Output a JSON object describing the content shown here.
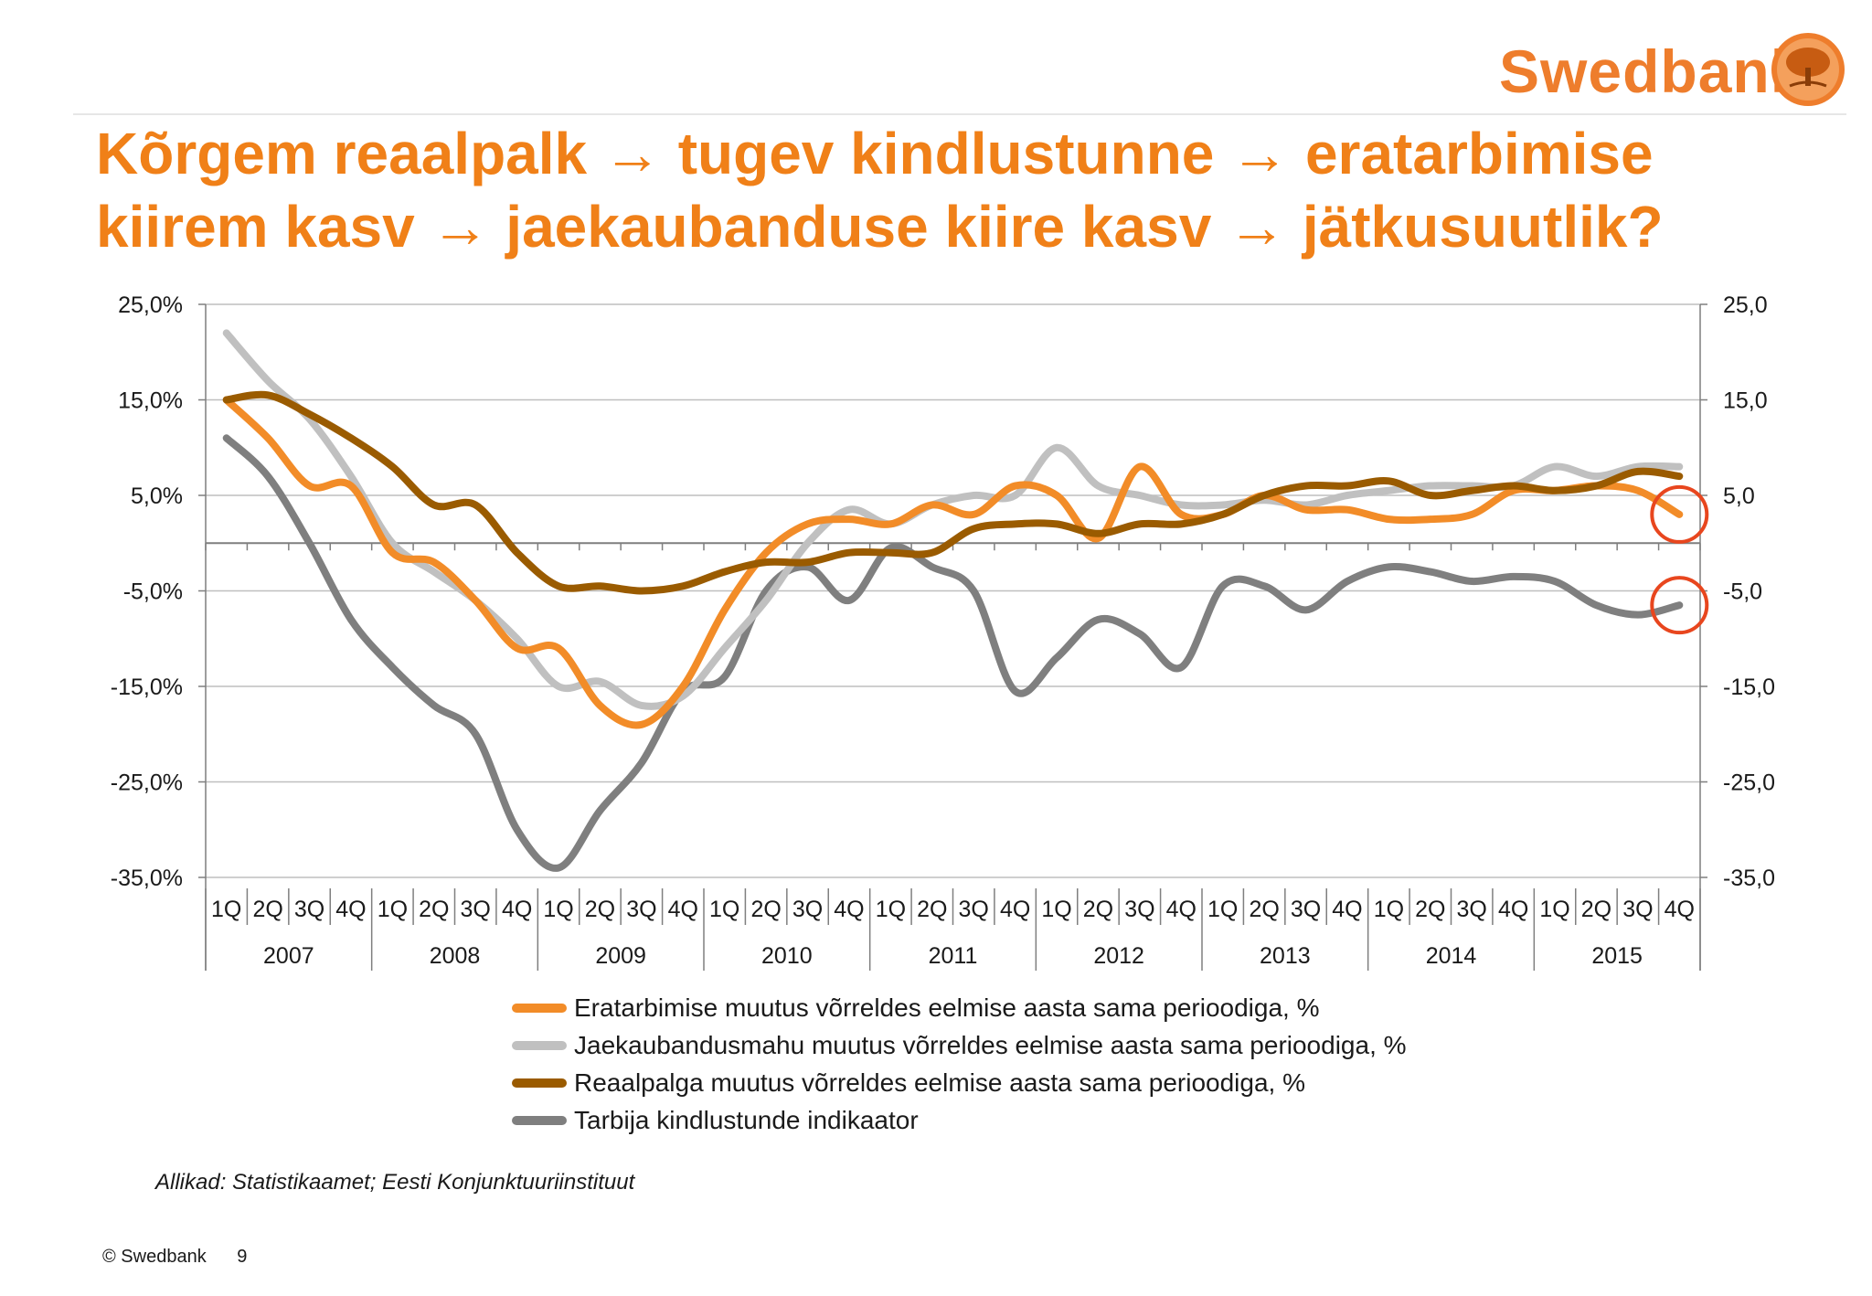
{
  "brand": {
    "name": "Swedbank",
    "logo_color": "#ee7d2c"
  },
  "slide": {
    "title_line1": "Kõrgem reaalpalk → tugev kindlustunne → eratarbimise",
    "title_line2": "kiirem kasv → jaekaubanduse kiire kasv → jätkusuutlik?",
    "source": "Allikad: Statistikaamet; Eesti Konjunktuuriinstituut",
    "footer_copyright": "© Swedbank",
    "page_number": "9"
  },
  "chart_data": {
    "type": "line",
    "categories": [
      "1Q",
      "2Q",
      "3Q",
      "4Q",
      "1Q",
      "2Q",
      "3Q",
      "4Q",
      "1Q",
      "2Q",
      "3Q",
      "4Q",
      "1Q",
      "2Q",
      "3Q",
      "4Q",
      "1Q",
      "2Q",
      "3Q",
      "4Q",
      "1Q",
      "2Q",
      "3Q",
      "4Q",
      "1Q",
      "2Q",
      "3Q",
      "4Q",
      "1Q",
      "2Q",
      "3Q",
      "4Q",
      "1Q",
      "2Q",
      "3Q",
      "4Q"
    ],
    "years": [
      "2007",
      "2008",
      "2009",
      "2010",
      "2011",
      "2012",
      "2013",
      "2014",
      "2015"
    ],
    "y_left": {
      "ticks": [
        25,
        15,
        5,
        -5,
        -15,
        -25,
        -35
      ],
      "tick_labels": [
        "25,0%",
        "15,0%",
        "5,0%",
        "-5,0%",
        "-15,0%",
        "-25,0%",
        "-35,0%"
      ],
      "range": [
        -35,
        25
      ]
    },
    "y_right": {
      "ticks": [
        25,
        15,
        5,
        -5,
        -15,
        -25,
        -35
      ],
      "tick_labels": [
        "25,0",
        "15,0",
        "5,0",
        "-5,0",
        "-15,0",
        "-25,0",
        "-35,0"
      ],
      "range": [
        -35,
        25
      ]
    },
    "grid": true,
    "legend_position": "bottom",
    "series": [
      {
        "name": "Eratarbimise muutus võrreldes eelmise aasta sama perioodiga, %",
        "color": "#f28c28",
        "axis": "left",
        "values": [
          15,
          11,
          6,
          6,
          -1,
          -2,
          -6,
          -11,
          -11,
          -17,
          -19,
          -15,
          -7,
          -1,
          2,
          2.5,
          2,
          4,
          3,
          6,
          5,
          0.5,
          8,
          3,
          3,
          5,
          3.5,
          3.5,
          2.5,
          2.5,
          3,
          5.5,
          5.5,
          6,
          5.5,
          3
        ]
      },
      {
        "name": "Jaekaubandusmahu muutus võrreldes eelmise aasta sama perioodiga, %",
        "color": "#c0c0c0",
        "axis": "left",
        "values": [
          22,
          17,
          13,
          7,
          0,
          -3,
          -6,
          -10,
          -15,
          -14.5,
          -17,
          -16,
          -11,
          -6,
          0,
          3.5,
          2,
          4,
          5,
          5,
          10,
          6,
          5,
          4,
          4,
          4.5,
          4,
          5,
          5.5,
          6,
          6,
          6,
          8,
          7,
          8,
          8
        ]
      },
      {
        "name": "Reaalpalga muutus võrreldes eelmise aasta sama perioodiga, %",
        "color": "#9a5b00",
        "axis": "left",
        "values": [
          15,
          15.5,
          13.5,
          11,
          8,
          4,
          4,
          -1,
          -4.5,
          -4.5,
          -5,
          -4.5,
          -3,
          -2,
          -2,
          -1,
          -1,
          -1,
          1.5,
          2,
          2,
          1,
          2,
          2,
          3,
          5,
          6,
          6,
          6.5,
          5,
          5.5,
          6,
          5.5,
          6,
          7.5,
          7
        ]
      },
      {
        "name": "Tarbija kindlustunde indikaator",
        "color": "#7f7f7f",
        "axis": "right",
        "values": [
          11,
          7,
          0,
          -8,
          -13,
          -17,
          -20,
          -30,
          -34,
          -28,
          -23,
          -15.5,
          -14,
          -5,
          -2.5,
          -6,
          -0.5,
          -2.5,
          -5,
          -15.5,
          -12,
          -8,
          -9.5,
          -13,
          -4.5,
          -4.5,
          -7,
          -4,
          -2.5,
          -3,
          -4,
          -3.5,
          -4,
          -6.5,
          -7.5,
          -6.5
        ]
      }
    ],
    "highlight_circles": [
      {
        "series_index": 0,
        "category_index": 35,
        "color": "#e8461e"
      },
      {
        "series_index": 3,
        "category_index": 35,
        "color": "#e8461e"
      }
    ]
  }
}
